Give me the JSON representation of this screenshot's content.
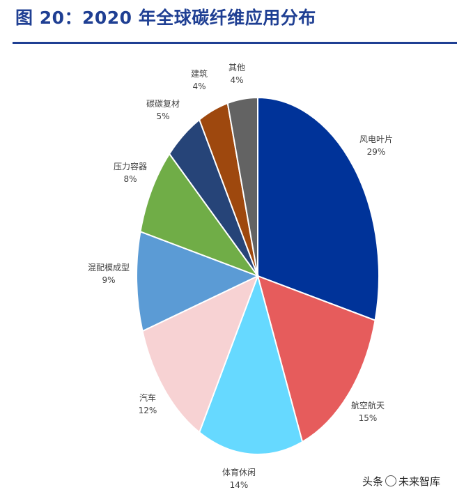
{
  "figure": {
    "title": "图 20：2020 年全球碳纤维应用分布"
  },
  "chart_data": {
    "type": "pie",
    "start_angle_deg": 0,
    "direction": "clockwise",
    "slices": [
      {
        "label": "风电叶片",
        "value": 29,
        "text": "29%",
        "color": "#003399"
      },
      {
        "label": "航空航天",
        "value": 15,
        "text": "15%",
        "color": "#e65c5c"
      },
      {
        "label": "体育休闲",
        "value": 14,
        "text": "14%",
        "color": "#66d9ff"
      },
      {
        "label": "汽车",
        "value": 12,
        "text": "12%",
        "color": "#f7d2d3"
      },
      {
        "label": "混配模成型",
        "value": 9,
        "text": "9%",
        "color": "#5b9bd5"
      },
      {
        "label": "压力容器",
        "value": 8,
        "text": "8%",
        "color": "#70ad47"
      },
      {
        "label": "碳碳复材",
        "value": 5,
        "text": "5%",
        "color": "#264478"
      },
      {
        "label": "建筑",
        "value": 4,
        "text": "4%",
        "color": "#9e480e"
      },
      {
        "label": "其他",
        "value": 4,
        "text": "4%",
        "color": "#636363"
      }
    ]
  },
  "watermark": {
    "text_left": "头条",
    "text_right": "未来智库"
  }
}
